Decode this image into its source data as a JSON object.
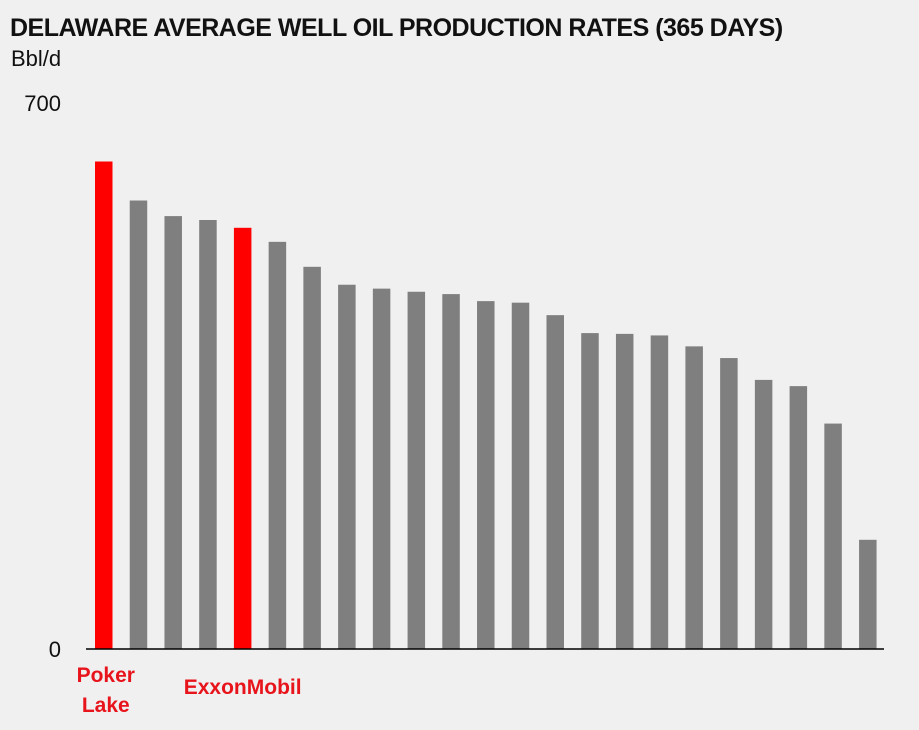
{
  "chart_data": {
    "type": "bar",
    "title": "DELAWARE AVERAGE WELL OIL PRODUCTION RATES (365 DAYS)",
    "ylabel": "Bbl/d",
    "ylim": [
      0,
      700
    ],
    "yticks": [
      "0",
      "700"
    ],
    "grid": false,
    "legend": "none",
    "values": [
      625,
      575,
      555,
      550,
      540,
      522,
      490,
      467,
      462,
      458,
      455,
      446,
      444,
      428,
      405,
      404,
      402,
      388,
      373,
      345,
      337,
      289,
      140
    ],
    "highlight_indices": [
      0,
      4
    ],
    "category_labels": [
      {
        "index": 0,
        "text": "Poker\nLake"
      },
      {
        "index": 4,
        "text": "ExxonMobil"
      }
    ],
    "colors": {
      "highlight": "#ff0000",
      "default": "#7f7f7f",
      "axis": "#000000",
      "label": "#e8141c"
    }
  }
}
